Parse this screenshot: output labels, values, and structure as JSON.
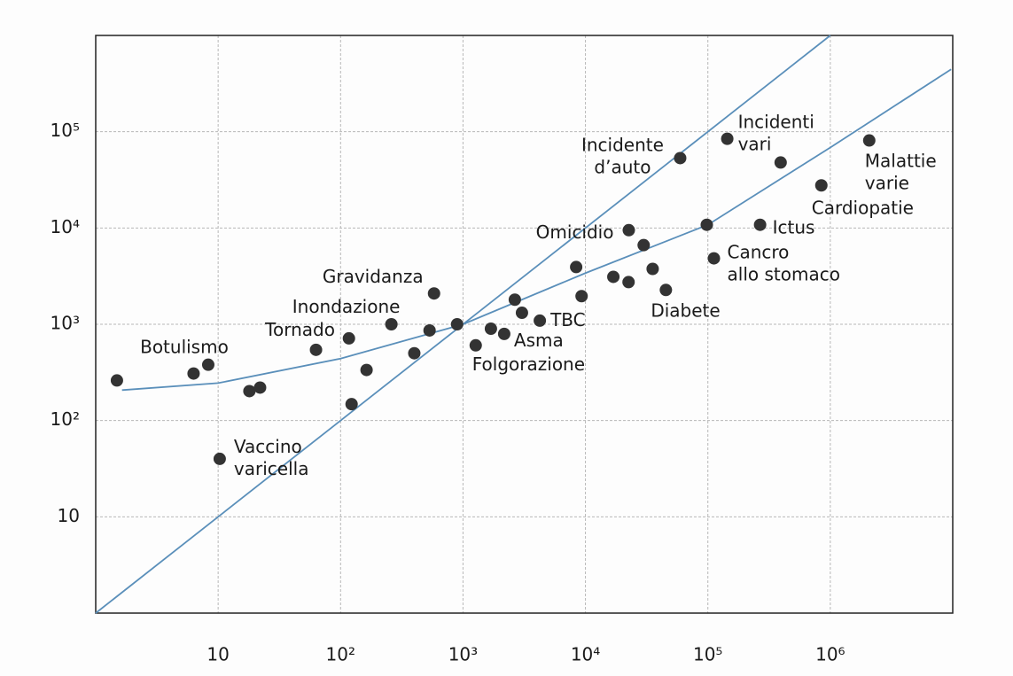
{
  "chart_data": {
    "type": "scatter",
    "xlog": true,
    "ylog": true,
    "grid": true,
    "xlim": [
      1,
      10000000
    ],
    "ylim": [
      1,
      1000000
    ],
    "xticks": [
      10,
      {
        "value": 100,
        "label": "10²"
      },
      {
        "value": 1000,
        "label": "10³"
      },
      {
        "value": 10000,
        "label": "10⁴"
      },
      {
        "value": 100000,
        "label": "10⁵"
      },
      {
        "value": 1000000,
        "label": "10⁶"
      }
    ],
    "yticks": [
      10,
      {
        "value": 100,
        "label": "10²"
      },
      {
        "value": 1000,
        "label": "10³"
      },
      {
        "value": 10000,
        "label": "10⁴"
      },
      {
        "value": 100000,
        "label": "10⁵"
      }
    ],
    "series": [
      {
        "type": "scatter",
        "color": "#333333",
        "x": [
          1.49,
          6.3,
          8.3,
          10.3,
          18,
          22,
          63,
          117,
          123,
          163,
          260,
          400,
          533,
          580,
          895,
          1270,
          1690,
          2170,
          2650,
          3030,
          4240,
          8400,
          9300,
          16900,
          22500,
          22600,
          29900,
          35400,
          45400,
          59400,
          98000,
          112000,
          144000,
          267000,
          393000,
          845000,
          2080000
        ],
        "values": [
          261,
          308,
          380,
          40,
          202,
          220,
          543,
          714,
          148,
          335,
          1000,
          500,
          863,
          2090,
          1000,
          604,
          899,
          794,
          1800,
          1316,
          1090,
          3930,
          1960,
          3110,
          2740,
          9490,
          6640,
          3760,
          2270,
          53200,
          10800,
          4840,
          84500,
          10800,
          47900,
          27700,
          81100
        ],
        "labels": [
          null,
          null,
          [
            "Botulismo"
          ],
          [
            "Vaccino",
            "varicella"
          ],
          null,
          null,
          [
            "Tornado"
          ],
          null,
          null,
          null,
          [
            "Inondazione"
          ],
          null,
          null,
          [
            "Gravidanza"
          ],
          null,
          [
            "Folgorazione"
          ],
          null,
          [
            "Asma"
          ],
          null,
          null,
          [
            "TBC"
          ],
          null,
          null,
          null,
          null,
          [
            "Omicidio"
          ],
          null,
          null,
          [
            "Diabete"
          ],
          [
            "Incidente",
            "d’auto"
          ],
          null,
          [
            "Cancro",
            "allo stomaco"
          ],
          [
            "Incidenti",
            "vari"
          ],
          [
            "Ictus"
          ],
          null,
          [
            "Cardiopatie"
          ],
          [
            "Malattie",
            "varie"
          ]
        ]
      },
      {
        "type": "line",
        "color": "#5a8fba",
        "x": [
          1,
          1000000
        ],
        "values": [
          1,
          1000000
        ]
      },
      {
        "type": "line",
        "color": "#5a8fba",
        "x": [
          1.64,
          10,
          100,
          1000,
          10000,
          100000,
          1000000,
          9700000
        ],
        "values": [
          207,
          245,
          440,
          1000,
          3400,
          10800,
          68500,
          445000
        ]
      }
    ]
  }
}
